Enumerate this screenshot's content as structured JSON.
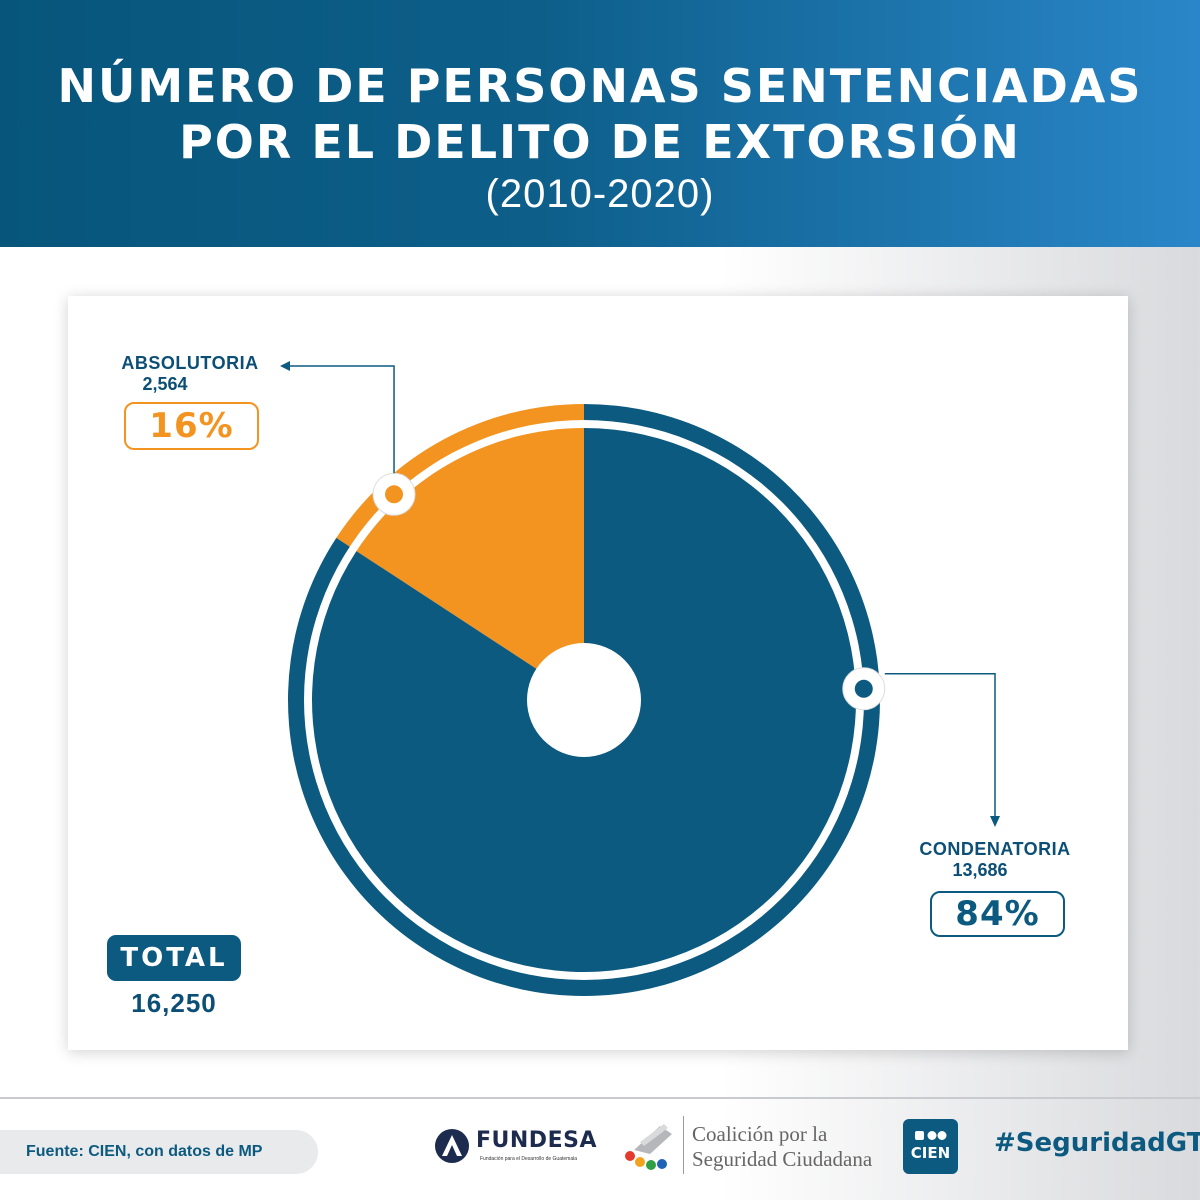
{
  "header": {
    "title": "NÚMERO DE PERSONAS SENTENCIADAS\nPOR EL DELITO DE EXTORSIÓN",
    "subtitle": "(2010-2020)"
  },
  "chart_data": {
    "type": "pie",
    "title": "NÚMERO DE PERSONAS SENTENCIADAS POR EL DELITO DE EXTORSIÓN",
    "subtitle": "(2010-2020)",
    "slices": [
      {
        "label": "ABSOLUTORIA",
        "value": 2564,
        "value_label": "2,564",
        "percent_label": "16%",
        "color": "#f39320"
      },
      {
        "label": "CONDENATORIA",
        "value": 13686,
        "value_label": "13,686",
        "percent_label": "84%",
        "color": "#0c5a80"
      }
    ],
    "total_label": "TOTAL",
    "total_value": "16,250"
  },
  "footer": {
    "source": "Fuente: CIEN, con datos de MP",
    "fundesa_name": "FUNDESA",
    "fundesa_tagline": "Fundación para el Desarrollo de Guatemala",
    "coalicion_text": "Coalición por la\nSeguridad Ciudadana",
    "cien_name": "CIEN",
    "hashtag": "#SeguridadGT"
  },
  "colors": {
    "header_start": "#07557b",
    "header_end": "#2a86c8",
    "condenatoria": "#0c5a80",
    "absolutoria": "#f39320"
  },
  "icons": [
    "fundesa-logo-icon",
    "coalicion-logo-icon",
    "cien-logo-icon",
    "arrow-left-icon",
    "arrow-down-icon"
  ]
}
